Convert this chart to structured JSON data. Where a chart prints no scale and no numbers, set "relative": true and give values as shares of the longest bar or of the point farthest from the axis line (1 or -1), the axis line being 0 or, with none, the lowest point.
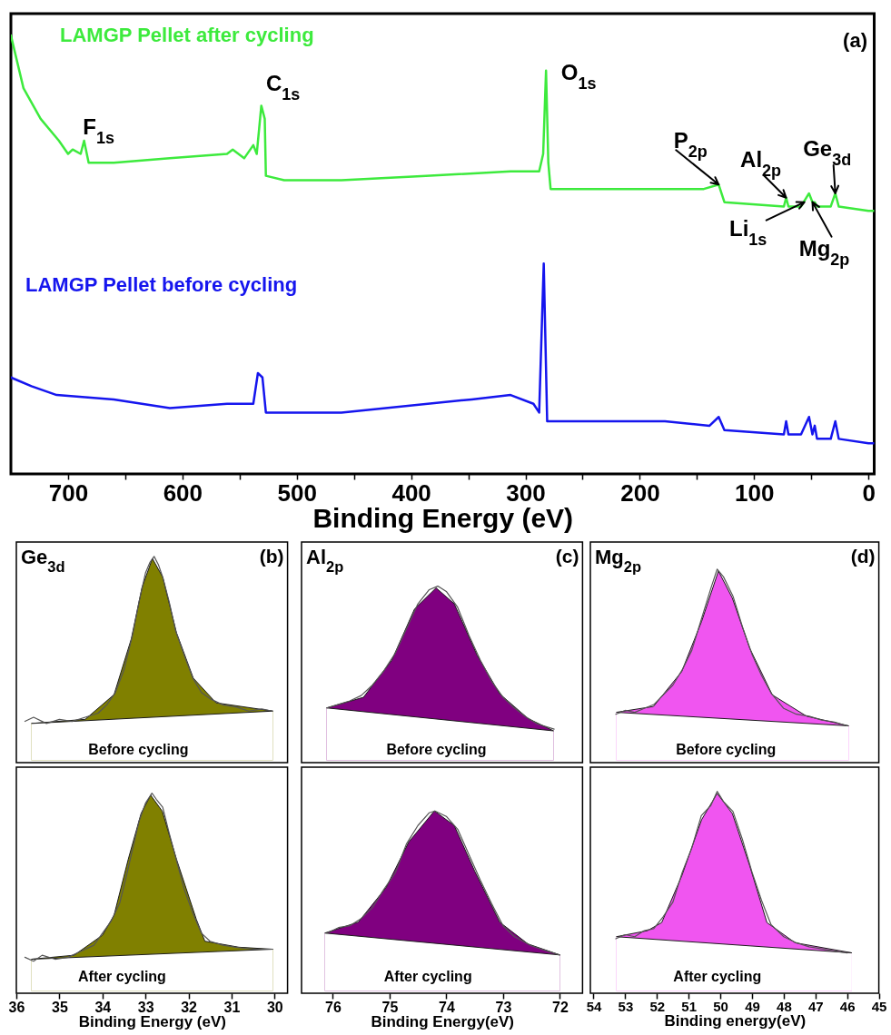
{
  "chart_data": [
    {
      "type": "line",
      "relative": true,
      "xlabel": "Binding Energy (eV)",
      "xlim": [
        750,
        -5
      ],
      "xticks": [
        700,
        {
          "value": 650,
          "label": null
        },
        600,
        {
          "value": 550,
          "label": null
        },
        500,
        {
          "value": 450,
          "label": null
        },
        400,
        {
          "value": 350,
          "label": null
        },
        300,
        {
          "value": 250,
          "label": null
        },
        200,
        {
          "value": 150,
          "label": null
        },
        100,
        {
          "value": 50,
          "label": null
        },
        0
      ],
      "tick_labels": "x",
      "annotations": [
        "(a)",
        {
          "text": "F$_{1s}$",
          "x": 686,
          "y": 0.76
        },
        {
          "text": "C$_{1s}$",
          "x": 531,
          "y": 0.84
        },
        {
          "text": "O$_{1s}$",
          "x": 282,
          "y": 0.92
        },
        {
          "text": "P$_{2p}$",
          "x": 131,
          "y": 0.66
        },
        {
          "text": "Al$_{2p}$",
          "x": 72,
          "y": 0.63
        },
        {
          "text": "Ge$_{3d}$",
          "x": 29,
          "y": 0.64
        },
        {
          "text": "Li$_{1s}$",
          "x": 56,
          "y": 0.62
        },
        {
          "text": "Mg$_{2p}$",
          "x": 49,
          "y": 0.62
        }
      ],
      "series": [
        {
          "name": "LAMGP Pellet after cycling",
          "color": "#3dea3d",
          "x": [
            750,
            739,
            724,
            708,
            700,
            696,
            689,
            686,
            682,
            660,
            611,
            561,
            556,
            546,
            538,
            535,
            531,
            528,
            527,
            511,
            461,
            387,
            313,
            288,
            284.5,
            282,
            280,
            278,
            213,
            144,
            131,
            126,
            74,
            72,
            70,
            59,
            52,
            49,
            47,
            45,
            33,
            29,
            26,
            0,
            -5
          ],
          "values": [
            1.0,
            0.88,
            0.81,
            0.76,
            0.73,
            0.74,
            0.73,
            0.76,
            0.71,
            0.71,
            0.72,
            0.73,
            0.74,
            0.72,
            0.75,
            0.73,
            0.84,
            0.81,
            0.68,
            0.67,
            0.67,
            0.68,
            0.69,
            0.69,
            0.73,
            0.92,
            0.71,
            0.65,
            0.65,
            0.65,
            0.66,
            0.62,
            0.61,
            0.63,
            0.61,
            0.61,
            0.64,
            0.62,
            0.62,
            0.61,
            0.61,
            0.64,
            0.61,
            0.6,
            0.6
          ]
        },
        {
          "name": "LAMGP Pellet before cycling",
          "color": "#1515ee",
          "x": [
            750,
            732,
            710,
            660,
            611,
            561,
            538,
            534,
            530,
            527,
            461,
            347,
            313,
            293,
            288,
            284,
            281,
            213,
            178,
            139,
            131,
            126,
            74,
            72,
            70,
            59,
            52,
            49,
            47,
            45,
            33,
            29,
            26,
            0,
            -5
          ],
          "values": [
            0.22,
            0.2,
            0.18,
            0.17,
            0.15,
            0.16,
            0.16,
            0.23,
            0.22,
            0.14,
            0.14,
            0.17,
            0.18,
            0.16,
            0.14,
            0.48,
            0.12,
            0.12,
            0.12,
            0.11,
            0.13,
            0.1,
            0.09,
            0.12,
            0.09,
            0.09,
            0.13,
            0.09,
            0.11,
            0.08,
            0.08,
            0.12,
            0.08,
            0.07,
            0.07
          ]
        }
      ]
    },
    {
      "type": "area",
      "relative": true,
      "title": "Ge$_{3d}$",
      "annotations": [
        "(b)",
        "Before cycling"
      ],
      "xlim": [
        36,
        29.7
      ],
      "tick_labels": false,
      "series": [
        {
          "color": "#808000",
          "x": [
            35.65,
            34.4,
            33.73,
            33.33,
            33.08,
            32.84,
            32.6,
            32.28,
            31.89,
            31.36,
            30.04
          ],
          "values": [
            0.19,
            0.21,
            0.33,
            0.6,
            0.85,
            0.99,
            0.9,
            0.63,
            0.41,
            0.29,
            0.25
          ]
        },
        {
          "color": "#ffffff",
          "x": [
            35.65,
            30.04
          ],
          "values": [
            0.19,
            0.25
          ]
        },
        {
          "type": "line",
          "color": "#555555",
          "x": [
            35.8,
            35.6,
            35.3,
            35.0,
            34.7,
            34.4,
            34.1,
            33.9,
            33.7,
            33.5,
            33.3,
            33.15,
            33.0,
            32.9,
            32.8,
            32.7,
            32.6,
            32.45,
            32.3,
            32.1,
            31.9,
            31.7,
            31.5,
            31.2,
            30.9,
            30.6,
            30.3,
            30.05
          ],
          "values": [
            0.2,
            0.22,
            0.19,
            0.21,
            0.2,
            0.22,
            0.24,
            0.28,
            0.34,
            0.45,
            0.62,
            0.78,
            0.92,
            0.97,
            1.0,
            0.96,
            0.9,
            0.78,
            0.64,
            0.52,
            0.41,
            0.34,
            0.31,
            0.28,
            0.27,
            0.25,
            0.26,
            0.25
          ]
        }
      ]
    },
    {
      "type": "area",
      "relative": true,
      "title": "Al$_{2p}$",
      "annotations": [
        "(c)",
        "Before cycling"
      ],
      "xlim": [
        76.55,
        71.6
      ],
      "tick_labels": false,
      "series": [
        {
          "color": "#800080",
          "x": [
            76.11,
            75.46,
            74.96,
            74.56,
            74.18,
            73.86,
            73.46,
            73.06,
            72.56,
            72.11
          ],
          "values": [
            0.31,
            0.37,
            0.58,
            0.87,
            0.99,
            0.9,
            0.61,
            0.39,
            0.25,
            0.18
          ]
        },
        {
          "color": "#ffffff",
          "x": [
            76.11,
            72.11
          ],
          "values": [
            0.31,
            0.18
          ]
        },
        {
          "type": "line",
          "color": "#555555",
          "x": [
            76.1,
            75.9,
            75.7,
            75.5,
            75.3,
            75.1,
            74.9,
            74.7,
            74.5,
            74.3,
            74.15,
            74.0,
            73.8,
            73.6,
            73.4,
            73.2,
            73.0,
            72.8,
            72.6,
            72.4,
            72.1
          ],
          "values": [
            0.31,
            0.33,
            0.35,
            0.38,
            0.44,
            0.52,
            0.62,
            0.76,
            0.9,
            0.98,
            1.0,
            0.97,
            0.88,
            0.72,
            0.58,
            0.46,
            0.37,
            0.31,
            0.26,
            0.22,
            0.19
          ]
        }
      ]
    },
    {
      "type": "area",
      "relative": true,
      "title": "Mg$_{2p}$",
      "annotations": [
        "(d)",
        "Before cycling"
      ],
      "xlim": [
        54.1,
        45
      ],
      "tick_labels": false,
      "series": [
        {
          "color": "#f055f0",
          "x": [
            53.28,
            52.11,
            51.22,
            50.59,
            50.06,
            49.62,
            49.07,
            48.36,
            47.28,
            45.95
          ],
          "values": [
            0.26,
            0.29,
            0.47,
            0.73,
            0.99,
            0.85,
            0.59,
            0.35,
            0.24,
            0.19
          ]
        },
        {
          "color": "#ffffff",
          "x": [
            53.28,
            45.95
          ],
          "values": [
            0.26,
            0.19
          ]
        },
        {
          "type": "line",
          "color": "#555555",
          "x": [
            53.3,
            53.0,
            52.7,
            52.4,
            52.1,
            51.8,
            51.5,
            51.2,
            50.9,
            50.6,
            50.3,
            50.1,
            49.9,
            49.6,
            49.3,
            49.0,
            48.7,
            48.4,
            48.0,
            47.6,
            47.2,
            46.8,
            46.4,
            46.0
          ],
          "values": [
            0.25,
            0.27,
            0.26,
            0.28,
            0.3,
            0.35,
            0.4,
            0.48,
            0.58,
            0.74,
            0.9,
            1.0,
            0.96,
            0.86,
            0.7,
            0.56,
            0.45,
            0.36,
            0.28,
            0.25,
            0.24,
            0.22,
            0.21,
            0.19
          ]
        }
      ]
    },
    {
      "type": "area",
      "relative": true,
      "annotations": [
        "After cycling"
      ],
      "xlabel": "Binding Energy (eV)",
      "xlim": [
        36,
        29.7
      ],
      "xticks": [
        36,
        35,
        34,
        33,
        32,
        31,
        30
      ],
      "tick_labels": "x",
      "series": [
        {
          "color": "#808000",
          "x": [
            35.65,
            34.66,
            34.0,
            33.73,
            33.4,
            33.1,
            32.88,
            32.61,
            32.28,
            31.82,
            31.62,
            30.83,
            30.04
          ],
          "values": [
            0.17,
            0.19,
            0.29,
            0.39,
            0.67,
            0.9,
            0.99,
            0.91,
            0.67,
            0.37,
            0.26,
            0.23,
            0.22
          ]
        },
        {
          "color": "#ffffff",
          "x": [
            35.65,
            30.04
          ],
          "values": [
            0.17,
            0.22
          ]
        },
        {
          "type": "line",
          "color": "#555555",
          "x": [
            35.8,
            35.6,
            35.4,
            35.1,
            34.8,
            34.5,
            34.2,
            34.0,
            33.8,
            33.6,
            33.45,
            33.3,
            33.15,
            33.0,
            32.85,
            32.75,
            32.6,
            32.45,
            32.3,
            32.1,
            31.9,
            31.7,
            31.5,
            31.2,
            30.9,
            30.5,
            30.05
          ],
          "values": [
            0.18,
            0.16,
            0.19,
            0.17,
            0.18,
            0.21,
            0.24,
            0.3,
            0.36,
            0.45,
            0.58,
            0.72,
            0.86,
            0.95,
            1.0,
            0.97,
            0.93,
            0.8,
            0.68,
            0.52,
            0.4,
            0.3,
            0.26,
            0.24,
            0.23,
            0.22,
            0.22
          ]
        }
      ]
    },
    {
      "type": "area",
      "relative": true,
      "annotations": [
        "After cycling"
      ],
      "xlabel": "Binding Energy(eV)",
      "xlim": [
        76.55,
        71.6
      ],
      "xticks": [
        76,
        75,
        74,
        73,
        72
      ],
      "tick_labels": "x",
      "series": [
        {
          "color": "#800080",
          "x": [
            76.14,
            75.55,
            75.06,
            74.66,
            74.21,
            73.86,
            73.5,
            73.06,
            72.56,
            72.0
          ],
          "values": [
            0.33,
            0.39,
            0.58,
            0.83,
            1.0,
            0.92,
            0.67,
            0.39,
            0.27,
            0.21
          ]
        },
        {
          "color": "#ffffff",
          "x": [
            76.14,
            72.0
          ],
          "values": [
            0.33,
            0.21
          ]
        },
        {
          "type": "line",
          "color": "#555555",
          "x": [
            76.1,
            75.9,
            75.7,
            75.5,
            75.3,
            75.1,
            74.9,
            74.7,
            74.5,
            74.3,
            74.2,
            74.0,
            73.8,
            73.6,
            73.4,
            73.2,
            73.0,
            72.8,
            72.5,
            72.3,
            72.0
          ],
          "values": [
            0.33,
            0.36,
            0.37,
            0.41,
            0.47,
            0.57,
            0.66,
            0.82,
            0.92,
            0.99,
            1.0,
            0.97,
            0.9,
            0.76,
            0.62,
            0.49,
            0.37,
            0.31,
            0.26,
            0.24,
            0.21
          ]
        }
      ]
    },
    {
      "type": "area",
      "relative": true,
      "annotations": [
        "After cycling"
      ],
      "xlabel": "Binding energy(eV)",
      "xlim": [
        54.1,
        45
      ],
      "xticks": [
        54,
        53,
        52,
        51,
        50,
        49,
        48,
        47,
        46,
        45
      ],
      "tick_labels": "x",
      "series": [
        {
          "color": "#f055f0",
          "x": [
            53.28,
            52.3,
            51.85,
            51.22,
            50.59,
            50.1,
            49.62,
            49.07,
            48.53,
            47.64,
            45.85
          ],
          "values": [
            0.28,
            0.31,
            0.35,
            0.58,
            0.86,
            0.99,
            0.89,
            0.63,
            0.35,
            0.25,
            0.2
          ]
        },
        {
          "color": "#ffffff",
          "x": [
            53.28,
            45.85
          ],
          "values": [
            0.28,
            0.2
          ]
        },
        {
          "type": "line",
          "color": "#555555",
          "x": [
            53.3,
            53.0,
            52.7,
            52.4,
            52.1,
            51.8,
            51.5,
            51.2,
            50.9,
            50.6,
            50.3,
            50.1,
            49.9,
            49.6,
            49.3,
            49.0,
            48.7,
            48.4,
            48.0,
            47.6,
            47.2,
            46.8,
            46.4,
            46.0
          ],
          "values": [
            0.27,
            0.29,
            0.28,
            0.31,
            0.32,
            0.38,
            0.45,
            0.6,
            0.72,
            0.88,
            0.93,
            1.0,
            0.95,
            0.9,
            0.76,
            0.6,
            0.46,
            0.34,
            0.28,
            0.25,
            0.23,
            0.22,
            0.21,
            0.2
          ]
        }
      ]
    }
  ]
}
